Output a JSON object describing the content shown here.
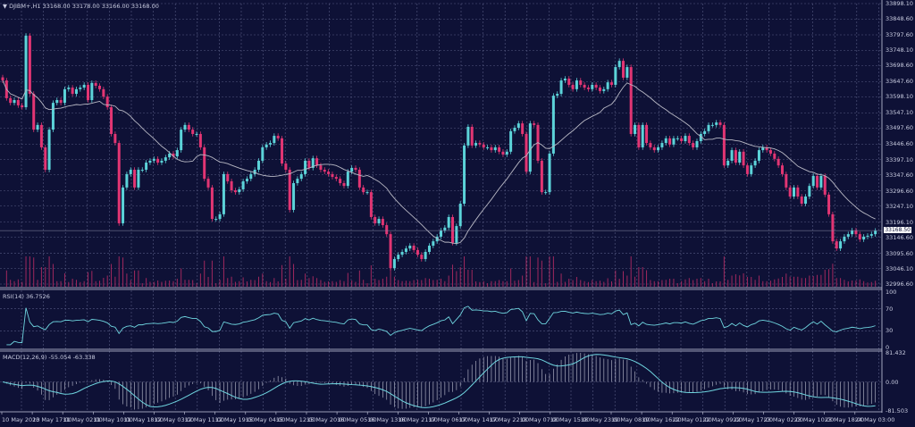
{
  "header": {
    "symbol": "DJIBM+,H1",
    "ohlc": "33168.00 33178.00 33166.00 33168.00",
    "arrow_icon": "triangle-down-icon"
  },
  "colors": {
    "background": "#0e1136",
    "grid": "#565a82",
    "bull": "#5cd3d9",
    "bear": "#e23573",
    "ma": "#b8b8c4",
    "volume": "#a0285e",
    "macd_hist": "#a9abbe",
    "signal": "#6fd6e0",
    "rsi": "#6fd6e0",
    "separator": "#c9cce0"
  },
  "indicators": {
    "rsi_label": "RSI(14) 36.7526",
    "macd_label": "MACD(12,26,9) -55.054 -63.338"
  },
  "current_price": "33168.50",
  "chart_data": [
    {
      "type": "candlestick",
      "timeframe": "H1",
      "price_ticks": [
        "33898.10",
        "33848.60",
        "33797.60",
        "33748.10",
        "33698.60",
        "33647.60",
        "33598.10",
        "33547.10",
        "33497.60",
        "33446.60",
        "33397.10",
        "33347.60",
        "33296.60",
        "33247.10",
        "33196.10",
        "33146.60",
        "33095.60",
        "33046.10",
        "32996.60"
      ],
      "ylim": [
        32996.6,
        33898.1
      ],
      "grid": true,
      "overlay": "moving average",
      "x_ticks": [
        "10 May 2023",
        "10 May 17:00",
        "11 May 02:00",
        "11 May 10:00",
        "11 May 18:00",
        "12 May 03:00",
        "12 May 11:00",
        "12 May 19:00",
        "15 May 04:00",
        "15 May 12:00",
        "15 May 20:00",
        "16 May 05:00",
        "16 May 13:00",
        "16 May 21:00",
        "17 May 06:00",
        "17 May 14:00",
        "17 May 22:00",
        "18 May 07:00",
        "18 May 15:00",
        "18 May 23:00",
        "19 May 08:00",
        "19 May 16:00",
        "22 May 01:00",
        "22 May 09:00",
        "22 May 17:00",
        "23 May 02:00",
        "23 May 10:00",
        "23 May 18:00",
        "24 May 03:00"
      ],
      "closes": [
        33651,
        33594,
        33579,
        33588,
        33571,
        33565,
        33795,
        33608,
        33493,
        33508,
        33436,
        33364,
        33493,
        33579,
        33588,
        33579,
        33623,
        33628,
        33608,
        33623,
        33628,
        33637,
        33588,
        33643,
        33634,
        33623,
        33599,
        33565,
        33479,
        33450,
        33192,
        33307,
        33350,
        33364,
        33307,
        33364,
        33364,
        33387,
        33393,
        33399,
        33387,
        33393,
        33404,
        33416,
        33407,
        33427,
        33493,
        33508,
        33493,
        33479,
        33479,
        33436,
        33335,
        33307,
        33206,
        33206,
        33221,
        33350,
        33327,
        33298,
        33292,
        33301,
        33327,
        33335,
        33350,
        33364,
        33393,
        33436,
        33445,
        33450,
        33473,
        33465,
        33384,
        33364,
        33235,
        33321,
        33335,
        33350,
        33393,
        33370,
        33401,
        33378,
        33364,
        33358,
        33350,
        33341,
        33335,
        33321,
        33312,
        33358,
        33370,
        33364,
        33307,
        33292,
        33292,
        33212,
        33192,
        33206,
        33186,
        33157,
        33048,
        33077,
        33091,
        33100,
        33111,
        33120,
        33106,
        33091,
        33077,
        33100,
        33120,
        33134,
        33149,
        33169,
        33178,
        33212,
        33129,
        33183,
        33255,
        33442,
        33502,
        33442,
        33450,
        33445,
        33436,
        33436,
        33427,
        33436,
        33422,
        33413,
        33422,
        33488,
        33499,
        33513,
        33479,
        33358,
        33513,
        33508,
        33393,
        33292,
        33292,
        33416,
        33602,
        33608,
        33651,
        33657,
        33637,
        33623,
        33651,
        33637,
        33628,
        33623,
        33637,
        33628,
        33617,
        33623,
        33645,
        33637,
        33694,
        33714,
        33660,
        33694,
        33479,
        33508,
        33436,
        33508,
        33450,
        33436,
        33427,
        33436,
        33450,
        33465,
        33445,
        33465,
        33465,
        33456,
        33473,
        33450,
        33436,
        33456,
        33479,
        33488,
        33508,
        33508,
        33516,
        33508,
        33378,
        33393,
        33427,
        33387,
        33422,
        33378,
        33350,
        33378,
        33393,
        33427,
        33436,
        33427,
        33416,
        33399,
        33378,
        33350,
        33307,
        33278,
        33307,
        33278,
        33255,
        33278,
        33312,
        33344,
        33307,
        33344,
        33284,
        33221,
        33134,
        33111,
        33134,
        33149,
        33157,
        33169,
        33157,
        33140,
        33149,
        33152,
        33157,
        33168
      ]
    },
    {
      "type": "line",
      "name": "RSI(14)",
      "value": 36.7526,
      "y_ticks": [
        "100",
        "70",
        "30",
        "0"
      ],
      "ylim": [
        0,
        100
      ],
      "levels": [
        70,
        30
      ]
    },
    {
      "type": "bar",
      "name": "MACD(12,26,9)",
      "main": -55.054,
      "signal": -63.338,
      "y_ticks": [
        "81.432",
        "0.00",
        "-81.503"
      ],
      "ylim": [
        -81.503,
        81.432
      ]
    }
  ]
}
